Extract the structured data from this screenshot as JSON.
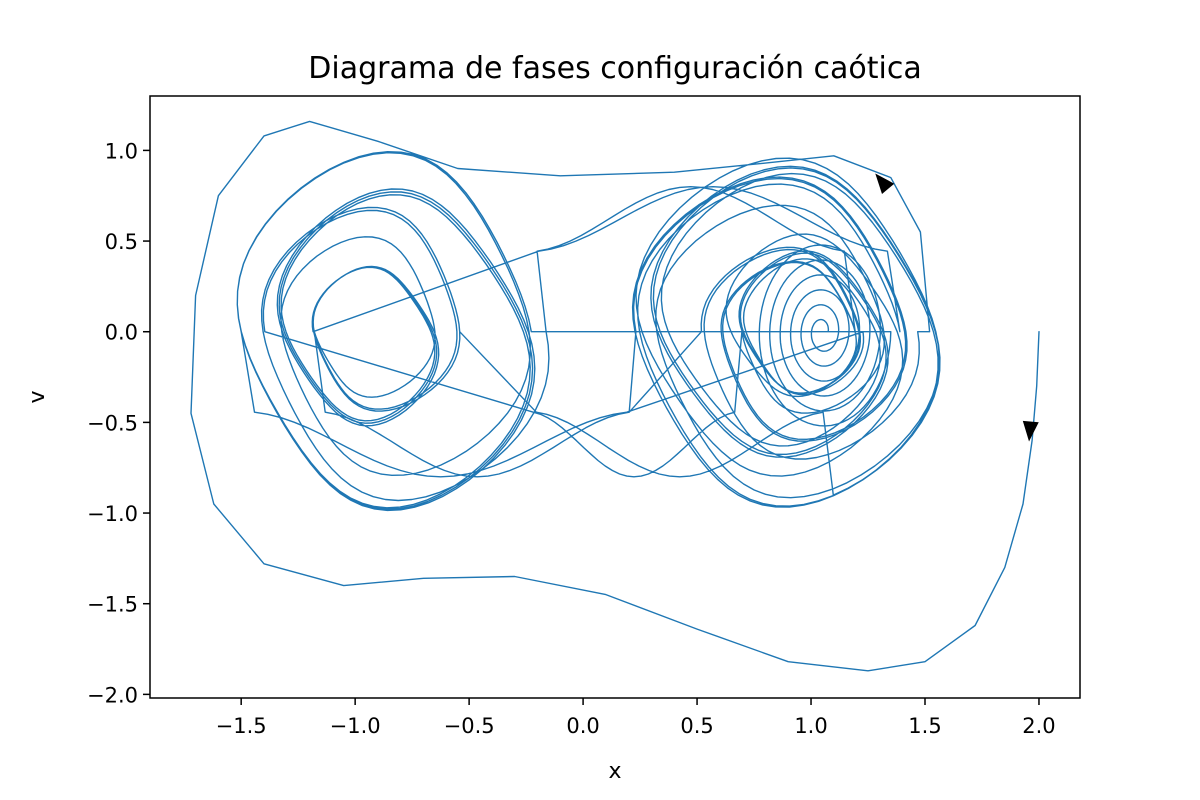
{
  "chart_data": {
    "type": "line",
    "title": "Diagrama de fases configuración caótica",
    "xlabel": "x",
    "ylabel": "v",
    "xlim": [
      -1.9,
      2.18
    ],
    "ylim": [
      -2.02,
      1.3
    ],
    "grid": false,
    "legend": "none",
    "x_ticks": [
      -1.5,
      -1.0,
      -0.5,
      0.0,
      0.5,
      1.0,
      1.5,
      2.0
    ],
    "x_tick_labels": [
      "−1.5",
      "−1.0",
      "−0.5",
      "0.0",
      "0.5",
      "1.0",
      "1.5",
      "2.0"
    ],
    "y_ticks": [
      -2.0,
      -1.5,
      -1.0,
      -0.5,
      0.0,
      0.5,
      1.0
    ],
    "y_tick_labels": [
      "−2.0",
      "−1.5",
      "−1.0",
      "−0.5",
      "0.0",
      "0.5",
      "1.0"
    ],
    "series": [
      {
        "color": "#1f77b4",
        "trajectory": {
          "start": [
            2.0,
            0.0
          ],
          "transient_path": [
            [
              2.0,
              0.0
            ],
            [
              1.99,
              -0.3
            ],
            [
              1.97,
              -0.6
            ],
            [
              1.93,
              -0.95
            ],
            [
              1.85,
              -1.3
            ],
            [
              1.72,
              -1.62
            ],
            [
              1.5,
              -1.82
            ],
            [
              1.25,
              -1.87
            ],
            [
              0.9,
              -1.82
            ],
            [
              0.5,
              -1.64
            ],
            [
              0.1,
              -1.45
            ],
            [
              -0.3,
              -1.35
            ],
            [
              -0.7,
              -1.36
            ],
            [
              -1.05,
              -1.4
            ],
            [
              -1.4,
              -1.28
            ],
            [
              -1.62,
              -0.95
            ],
            [
              -1.72,
              -0.45
            ],
            [
              -1.7,
              0.2
            ],
            [
              -1.6,
              0.75
            ],
            [
              -1.4,
              1.08
            ],
            [
              -1.2,
              1.16
            ],
            [
              -0.9,
              1.05
            ],
            [
              -0.55,
              0.9
            ],
            [
              -0.1,
              0.86
            ],
            [
              0.4,
              0.88
            ],
            [
              0.8,
              0.93
            ],
            [
              1.1,
              0.97
            ],
            [
              1.35,
              0.85
            ],
            [
              1.48,
              0.55
            ],
            [
              1.52,
              0.0
            ]
          ],
          "wells": [
            {
              "center": [
                -1.0,
                0.0
              ],
              "outer_x_range": [
                -1.5,
                -0.15
              ],
              "outer_v_amplitude": 0.92
            },
            {
              "center": [
                1.0,
                0.0
              ],
              "outer_x_range": [
                0.2,
                1.55
              ],
              "outer_v_amplitude": 0.88
            }
          ]
        }
      }
    ],
    "annotations": [
      {
        "type": "arrow",
        "x": 1.96,
        "v": -0.55,
        "direction": "down"
      },
      {
        "type": "arrow",
        "x": 1.31,
        "v": 0.83,
        "direction": "up-left"
      }
    ]
  }
}
